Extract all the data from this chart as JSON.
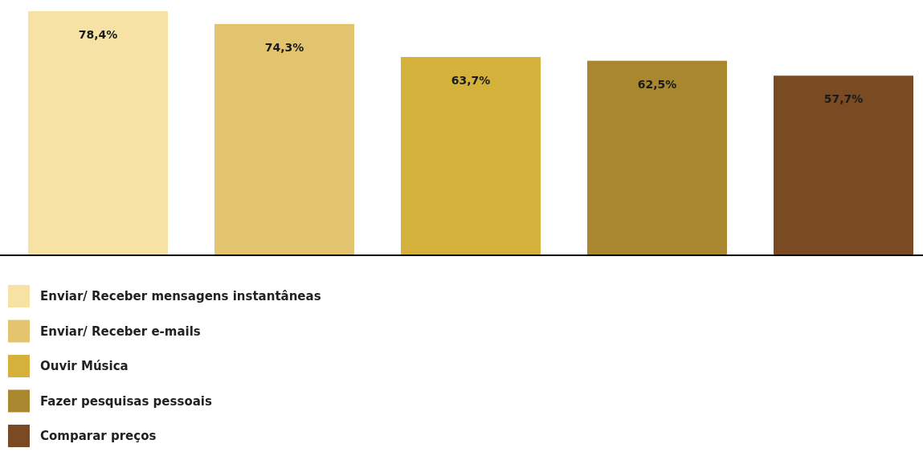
{
  "chart_data": {
    "type": "bar",
    "categories": [
      null,
      null,
      null,
      null,
      null
    ],
    "stacked": true,
    "legend": "bottom left",
    "series": [
      {
        "name": "Enviar/ Receber mensagens instantâneas",
        "color": "#f5e2a4",
        "values": [
          78.4,
          null,
          null,
          null,
          null
        ],
        "value_labels": [
          "78,4%",
          null,
          null,
          null,
          null
        ]
      },
      {
        "name": "Enviar/ Receber e-mails",
        "color": "#e2c46e",
        "values": [
          null,
          74.3,
          null,
          null,
          null
        ],
        "value_labels": [
          null,
          "74,3%",
          null,
          null,
          null
        ]
      },
      {
        "name": "Ouvir Música",
        "color": "#d3b13a",
        "values": [
          null,
          null,
          63.7,
          null,
          null
        ],
        "value_labels": [
          null,
          null,
          "63,7%",
          null,
          null
        ]
      },
      {
        "name": "Fazer pesquisas pessoais",
        "color": "#a8872e",
        "values": [
          null,
          null,
          null,
          62.5,
          null
        ],
        "value_labels": [
          null,
          null,
          null,
          "62,5%",
          null
        ]
      },
      {
        "name": "Comparar preços",
        "color": "#7a4a22",
        "values": [
          null,
          null,
          null,
          null,
          57.7
        ],
        "value_labels": [
          null,
          null,
          null,
          null,
          "57,7%"
        ]
      }
    ]
  }
}
